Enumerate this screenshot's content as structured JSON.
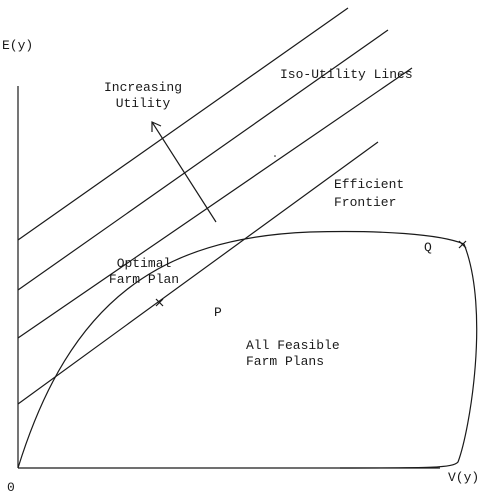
{
  "axes": {
    "y_label": "E(y)",
    "x_label": "V(y)",
    "origin_label": "0"
  },
  "labels": {
    "increasing_utility_1": "Increasing",
    "increasing_utility_2": "Utility",
    "iso_utility": "Iso-Utility Lines",
    "efficient_1": "Efficient",
    "efficient_2": "Frontier",
    "optimal_1": "Optimal",
    "optimal_2": "Farm Plan",
    "point_p": "P",
    "point_q": "Q",
    "feasible_1": "All Feasible",
    "feasible_2": "Farm Plans"
  },
  "colors": {
    "ink": "#1a1a1a",
    "background": "#ffffff"
  }
}
